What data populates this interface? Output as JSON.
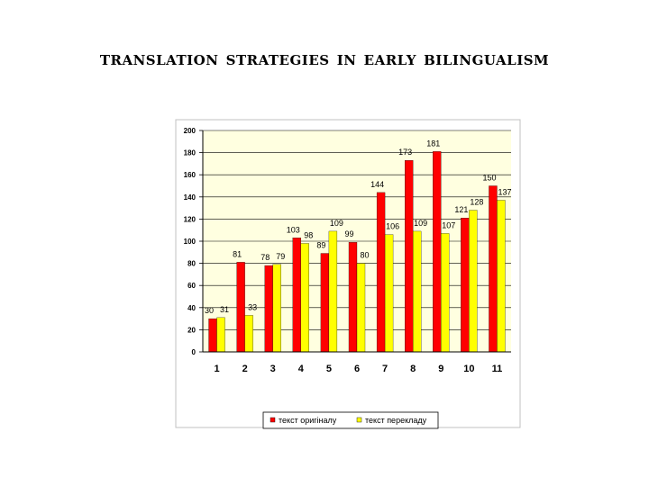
{
  "title": "translation strategies in early bilingualism",
  "colors": {
    "plot_bg": "#FFFFE0",
    "frame": "#C0C0C0",
    "series1": "#FF0000",
    "series2": "#FFFF00"
  },
  "chart_data": {
    "type": "bar",
    "title": "translation strategies in early bilingualism",
    "xlabel": "",
    "ylabel": "",
    "categories": [
      "1",
      "2",
      "3",
      "4",
      "5",
      "6",
      "7",
      "8",
      "9",
      "10",
      "11"
    ],
    "ylim": [
      0,
      200
    ],
    "yticks": [
      0,
      20,
      40,
      60,
      80,
      100,
      120,
      140,
      160,
      180,
      200
    ],
    "grid": true,
    "legend": "bottom",
    "series": [
      {
        "name": "текст оригіналу",
        "color": "#FF0000",
        "values": [
          30,
          81,
          78,
          103,
          89,
          99,
          144,
          173,
          181,
          121,
          150
        ]
      },
      {
        "name": "текст перекладу",
        "color": "#FFFF00",
        "values": [
          31,
          33,
          79,
          98,
          109,
          80,
          106,
          109,
          107,
          128,
          137
        ]
      }
    ]
  }
}
